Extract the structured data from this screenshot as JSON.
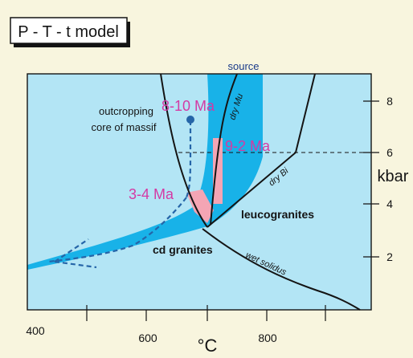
{
  "title": "P - T - t model",
  "axes": {
    "x_unit": "°C",
    "x_ticks": [
      {
        "value": 400,
        "label": "400"
      },
      {
        "value": 600,
        "label": "600"
      },
      {
        "value": 800,
        "label": "800"
      }
    ],
    "y_unit": "kbar",
    "y_ticks": [
      {
        "value": 2,
        "label": "2"
      },
      {
        "value": 4,
        "label": "4"
      },
      {
        "value": 6,
        "label": "6"
      },
      {
        "value": 8,
        "label": "8"
      }
    ]
  },
  "labels": {
    "source": "source",
    "outcropping_line1": "outcropping",
    "outcropping_line2": "core of massif",
    "age_8_10": "8-10 Ma",
    "age_9_2": "9-2 Ma",
    "age_3_4": "3-4 Ma",
    "leucogranites": "leucogranites",
    "cd_granites": "cd granites",
    "dry_mu": "dry Mu",
    "dry_bi": "dry Bi",
    "wet_solidus": "wet solidus"
  },
  "colors": {
    "background": "#f8f5de",
    "plot_fill": "#b3e5f5",
    "band_fill": "#18b2e8",
    "path_blue": "#2565a8",
    "pink_region": "#f4a5b4",
    "magenta_text": "#d43aa4",
    "line": "#141414"
  }
}
